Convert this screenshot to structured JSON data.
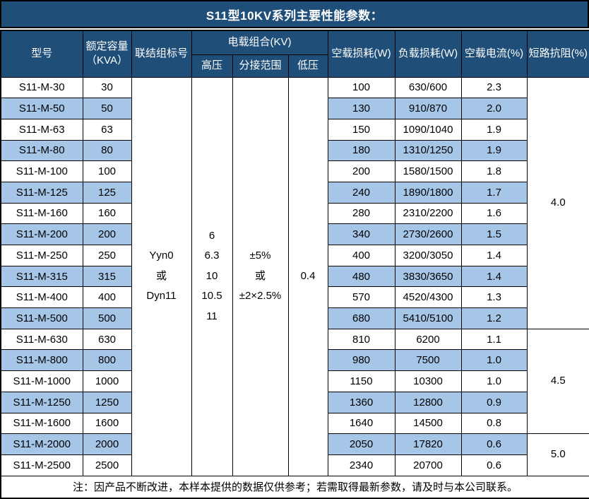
{
  "title": "S11型10KV系列主要性能参数：",
  "colors": {
    "header_bg": "#1F4E79",
    "stripe_bg": "#A6C6E8",
    "border": "#000000",
    "header_text": "#ffffff",
    "body_text": "#000000"
  },
  "table": {
    "headers": {
      "model": "型号",
      "capacity": "额定容量\n（KVA）",
      "connection": "联结组标号",
      "voltage_group": "电载组合(KV)",
      "hv": "高压",
      "tap_range": "分接范围",
      "lv": "低压",
      "no_load_loss": "空载损耗(W)",
      "load_loss": "负载损耗(W)",
      "no_load_current": "空载电流(%)",
      "impedance": "短路抗阻(%)"
    },
    "merged": {
      "connection": "Yyn0\n或\nDyn11",
      "hv": "6\n6.3\n10\n10.5\n11",
      "tap_range": "±5%\n或\n±2×2.5%",
      "lv": "0.4"
    },
    "rows": [
      {
        "model": "S11-M-30",
        "kva": "30",
        "no_load_loss": "100",
        "load_loss": "630/600",
        "no_load_current": "2.3"
      },
      {
        "model": "S11-M-50",
        "kva": "50",
        "no_load_loss": "130",
        "load_loss": "910/870",
        "no_load_current": "2.0"
      },
      {
        "model": "S11-M-63",
        "kva": "63",
        "no_load_loss": "150",
        "load_loss": "1090/1040",
        "no_load_current": "1.9"
      },
      {
        "model": "S11-M-80",
        "kva": "80",
        "no_load_loss": "180",
        "load_loss": "1310/1250",
        "no_load_current": "1.9"
      },
      {
        "model": "S11-M-100",
        "kva": "100",
        "no_load_loss": "200",
        "load_loss": "1580/1500",
        "no_load_current": "1.8"
      },
      {
        "model": "S11-M-125",
        "kva": "125",
        "no_load_loss": "240",
        "load_loss": "1890/1800",
        "no_load_current": "1.7"
      },
      {
        "model": "S11-M-160",
        "kva": "160",
        "no_load_loss": "280",
        "load_loss": "2310/2200",
        "no_load_current": "1.6"
      },
      {
        "model": "S11-M-200",
        "kva": "200",
        "no_load_loss": "340",
        "load_loss": "2730/2600",
        "no_load_current": "1.5"
      },
      {
        "model": "S11-M-250",
        "kva": "250",
        "no_load_loss": "400",
        "load_loss": "3200/3050",
        "no_load_current": "1.4"
      },
      {
        "model": "S11-M-315",
        "kva": "315",
        "no_load_loss": "480",
        "load_loss": "3830/3650",
        "no_load_current": "1.4"
      },
      {
        "model": "S11-M-400",
        "kva": "400",
        "no_load_loss": "570",
        "load_loss": "4520/4300",
        "no_load_current": "1.3"
      },
      {
        "model": "S11-M-500",
        "kva": "500",
        "no_load_loss": "680",
        "load_loss": "5410/5100",
        "no_load_current": "1.2"
      },
      {
        "model": "S11-M-630",
        "kva": "630",
        "no_load_loss": "810",
        "load_loss": "6200",
        "no_load_current": "1.1"
      },
      {
        "model": "S11-M-800",
        "kva": "800",
        "no_load_loss": "980",
        "load_loss": "7500",
        "no_load_current": "1.0"
      },
      {
        "model": "S11-M-1000",
        "kva": "1000",
        "no_load_loss": "1150",
        "load_loss": "10300",
        "no_load_current": "1.0"
      },
      {
        "model": "S11-M-1250",
        "kva": "1250",
        "no_load_loss": "1360",
        "load_loss": "12800",
        "no_load_current": "0.9"
      },
      {
        "model": "S11-M-1600",
        "kva": "1600",
        "no_load_loss": "1640",
        "load_loss": "14500",
        "no_load_current": "0.8"
      },
      {
        "model": "S11-M-2000",
        "kva": "2000",
        "no_load_loss": "2050",
        "load_loss": "17820",
        "no_load_current": "0.6"
      },
      {
        "model": "S11-M-2500",
        "kva": "2500",
        "no_load_loss": "2340",
        "load_loss": "20700",
        "no_load_current": "0.6"
      }
    ],
    "impedance_groups": [
      {
        "value": "4.0",
        "rows": 12
      },
      {
        "value": "4.5",
        "rows": 5
      },
      {
        "value": "5.0",
        "rows": 2
      }
    ]
  },
  "footer_note": "注：因产品不断改进，本样本提供的数据仅供参考；若需取得最新参数，请及时与本公司联系。"
}
